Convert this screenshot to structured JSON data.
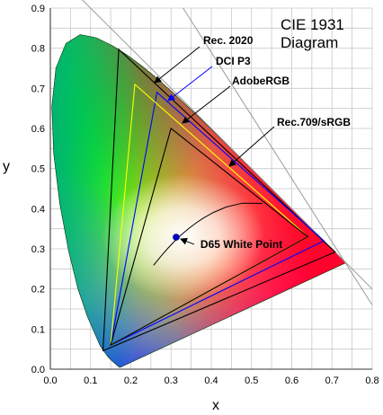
{
  "chart_data": {
    "type": "scatter",
    "title_line1": "CIE 1931",
    "title_line2": "Diagram",
    "xlabel": "x",
    "ylabel": "y",
    "xlim": [
      0,
      0.8
    ],
    "ylim": [
      0,
      0.9
    ],
    "x_ticks": [
      "0.0",
      "0.1",
      "0.2",
      "0.3",
      "0.4",
      "0.5",
      "0.6",
      "0.7",
      "0.8"
    ],
    "y_ticks": [
      "0.0",
      "0.1",
      "0.2",
      "0.3",
      "0.4",
      "0.5",
      "0.6",
      "0.7",
      "0.8",
      "0.9"
    ],
    "grid": true,
    "spectral_locus": [
      [
        0.1741,
        0.005
      ],
      [
        0.1738,
        0.0049
      ],
      [
        0.1736,
        0.0049
      ],
      [
        0.173,
        0.0048
      ],
      [
        0.1714,
        0.0051
      ],
      [
        0.1689,
        0.0069
      ],
      [
        0.1644,
        0.0109
      ],
      [
        0.1566,
        0.0177
      ],
      [
        0.144,
        0.0297
      ],
      [
        0.1241,
        0.0578
      ],
      [
        0.0913,
        0.1327
      ],
      [
        0.0687,
        0.2007
      ],
      [
        0.0454,
        0.295
      ],
      [
        0.0235,
        0.4127
      ],
      [
        0.0082,
        0.5384
      ],
      [
        0.0039,
        0.6548
      ],
      [
        0.0139,
        0.7502
      ],
      [
        0.0389,
        0.812
      ],
      [
        0.0743,
        0.8338
      ],
      [
        0.1142,
        0.8262
      ],
      [
        0.1547,
        0.8059
      ],
      [
        0.1929,
        0.7816
      ],
      [
        0.2296,
        0.7543
      ],
      [
        0.2658,
        0.7243
      ],
      [
        0.3016,
        0.6923
      ],
      [
        0.3373,
        0.6589
      ],
      [
        0.3731,
        0.6245
      ],
      [
        0.4087,
        0.5896
      ],
      [
        0.4441,
        0.5547
      ],
      [
        0.4788,
        0.5202
      ],
      [
        0.5125,
        0.4866
      ],
      [
        0.5448,
        0.4544
      ],
      [
        0.5752,
        0.4242
      ],
      [
        0.6029,
        0.3965
      ],
      [
        0.627,
        0.3725
      ],
      [
        0.6482,
        0.3514
      ],
      [
        0.6658,
        0.334
      ],
      [
        0.6801,
        0.3197
      ],
      [
        0.6915,
        0.3083
      ],
      [
        0.7006,
        0.2993
      ],
      [
        0.7079,
        0.292
      ],
      [
        0.714,
        0.2859
      ],
      [
        0.719,
        0.2809
      ],
      [
        0.723,
        0.277
      ],
      [
        0.726,
        0.274
      ],
      [
        0.7283,
        0.2717
      ],
      [
        0.73,
        0.27
      ],
      [
        0.7347,
        0.2653
      ]
    ],
    "planckian_locus": [
      [
        0.5267,
        0.4133
      ],
      [
        0.477,
        0.4137
      ],
      [
        0.4369,
        0.4041
      ],
      [
        0.4053,
        0.3907
      ],
      [
        0.3805,
        0.3768
      ],
      [
        0.3608,
        0.3636
      ],
      [
        0.3451,
        0.3516
      ],
      [
        0.3324,
        0.341
      ],
      [
        0.322,
        0.3318
      ],
      [
        0.3135,
        0.3236
      ],
      [
        0.3063,
        0.3165
      ],
      [
        0.2952,
        0.3048
      ],
      [
        0.2806,
        0.2883
      ],
      [
        0.2699,
        0.2755
      ],
      [
        0.2565,
        0.259
      ]
    ],
    "series": [
      {
        "name": "Rec.2020",
        "color": "#000000",
        "points": [
          [
            0.708,
            0.292
          ],
          [
            0.17,
            0.797
          ],
          [
            0.131,
            0.046
          ]
        ]
      },
      {
        "name": "DCI P3",
        "color": "#0000ff",
        "points": [
          [
            0.68,
            0.32
          ],
          [
            0.265,
            0.69
          ],
          [
            0.15,
            0.06
          ]
        ]
      },
      {
        "name": "AdobeRGB",
        "color": "#ffff00",
        "points": [
          [
            0.64,
            0.33
          ],
          [
            0.21,
            0.71
          ],
          [
            0.15,
            0.06
          ]
        ]
      },
      {
        "name": "Rec.709/sRGB",
        "color": "#000000",
        "points": [
          [
            0.64,
            0.33
          ],
          [
            0.3,
            0.6
          ],
          [
            0.15,
            0.06
          ]
        ]
      }
    ],
    "white_point": {
      "label": "D65 White Point",
      "x": 0.3127,
      "y": 0.329,
      "color": "#0000cc"
    },
    "annotations": [
      {
        "text": "Rec. 2020",
        "series": "Rec.2020",
        "arrow_color": "#000000"
      },
      {
        "text": "DCI P3",
        "series": "DCI P3",
        "arrow_color": "#0000ff"
      },
      {
        "text": "AdobeRGB",
        "series": "AdobeRGB",
        "arrow_color": "#000000"
      },
      {
        "text": "Rec.709/sRGB",
        "series": "Rec.709/sRGB",
        "arrow_color": "#000000"
      }
    ]
  }
}
